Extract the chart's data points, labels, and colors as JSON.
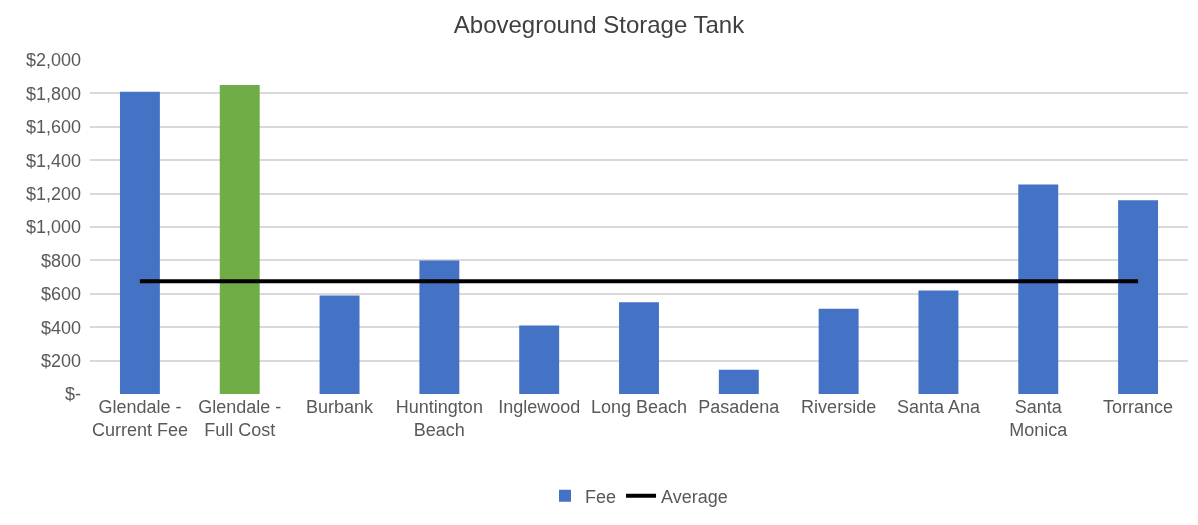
{
  "chart_data": {
    "type": "bar",
    "title": "Aboveground Storage Tank",
    "categories": [
      "Glendale - Current Fee",
      "Glendale - Full Cost",
      "Burbank",
      "Huntington Beach",
      "Inglewood",
      "Long Beach",
      "Pasadena",
      "Riverside",
      "Santa Ana",
      "Santa Monica",
      "Torrance"
    ],
    "series": [
      {
        "name": "Fee",
        "color": "#4472c4",
        "colors": [
          "#4472c4",
          "#70ad47",
          "#4472c4",
          "#4472c4",
          "#4472c4",
          "#4472c4",
          "#4472c4",
          "#4472c4",
          "#4472c4",
          "#4472c4",
          "#4472c4"
        ],
        "values": [
          1810,
          1850,
          590,
          800,
          410,
          550,
          145,
          510,
          620,
          1255,
          1160
        ]
      },
      {
        "name": "Average",
        "type": "line",
        "color": "#000000",
        "values": [
          675,
          675,
          675,
          675,
          675,
          675,
          675,
          675,
          675,
          675,
          675
        ]
      }
    ],
    "ylim": [
      0,
      2000
    ],
    "yticks": [
      {
        "value": 0,
        "label": "$-"
      },
      {
        "value": 200,
        "label": "$200"
      },
      {
        "value": 400,
        "label": "$400"
      },
      {
        "value": 600,
        "label": "$600"
      },
      {
        "value": 800,
        "label": "$800"
      },
      {
        "value": 1000,
        "label": "$1,000"
      },
      {
        "value": 1200,
        "label": "$1,200"
      },
      {
        "value": 1400,
        "label": "$1,400"
      },
      {
        "value": 1600,
        "label": "$1,600"
      },
      {
        "value": 1800,
        "label": "$1,800"
      },
      {
        "value": 2000,
        "label": "$2,000"
      }
    ],
    "grid": "y",
    "legend": "bottom",
    "line_style": "solid",
    "marker": "none"
  }
}
